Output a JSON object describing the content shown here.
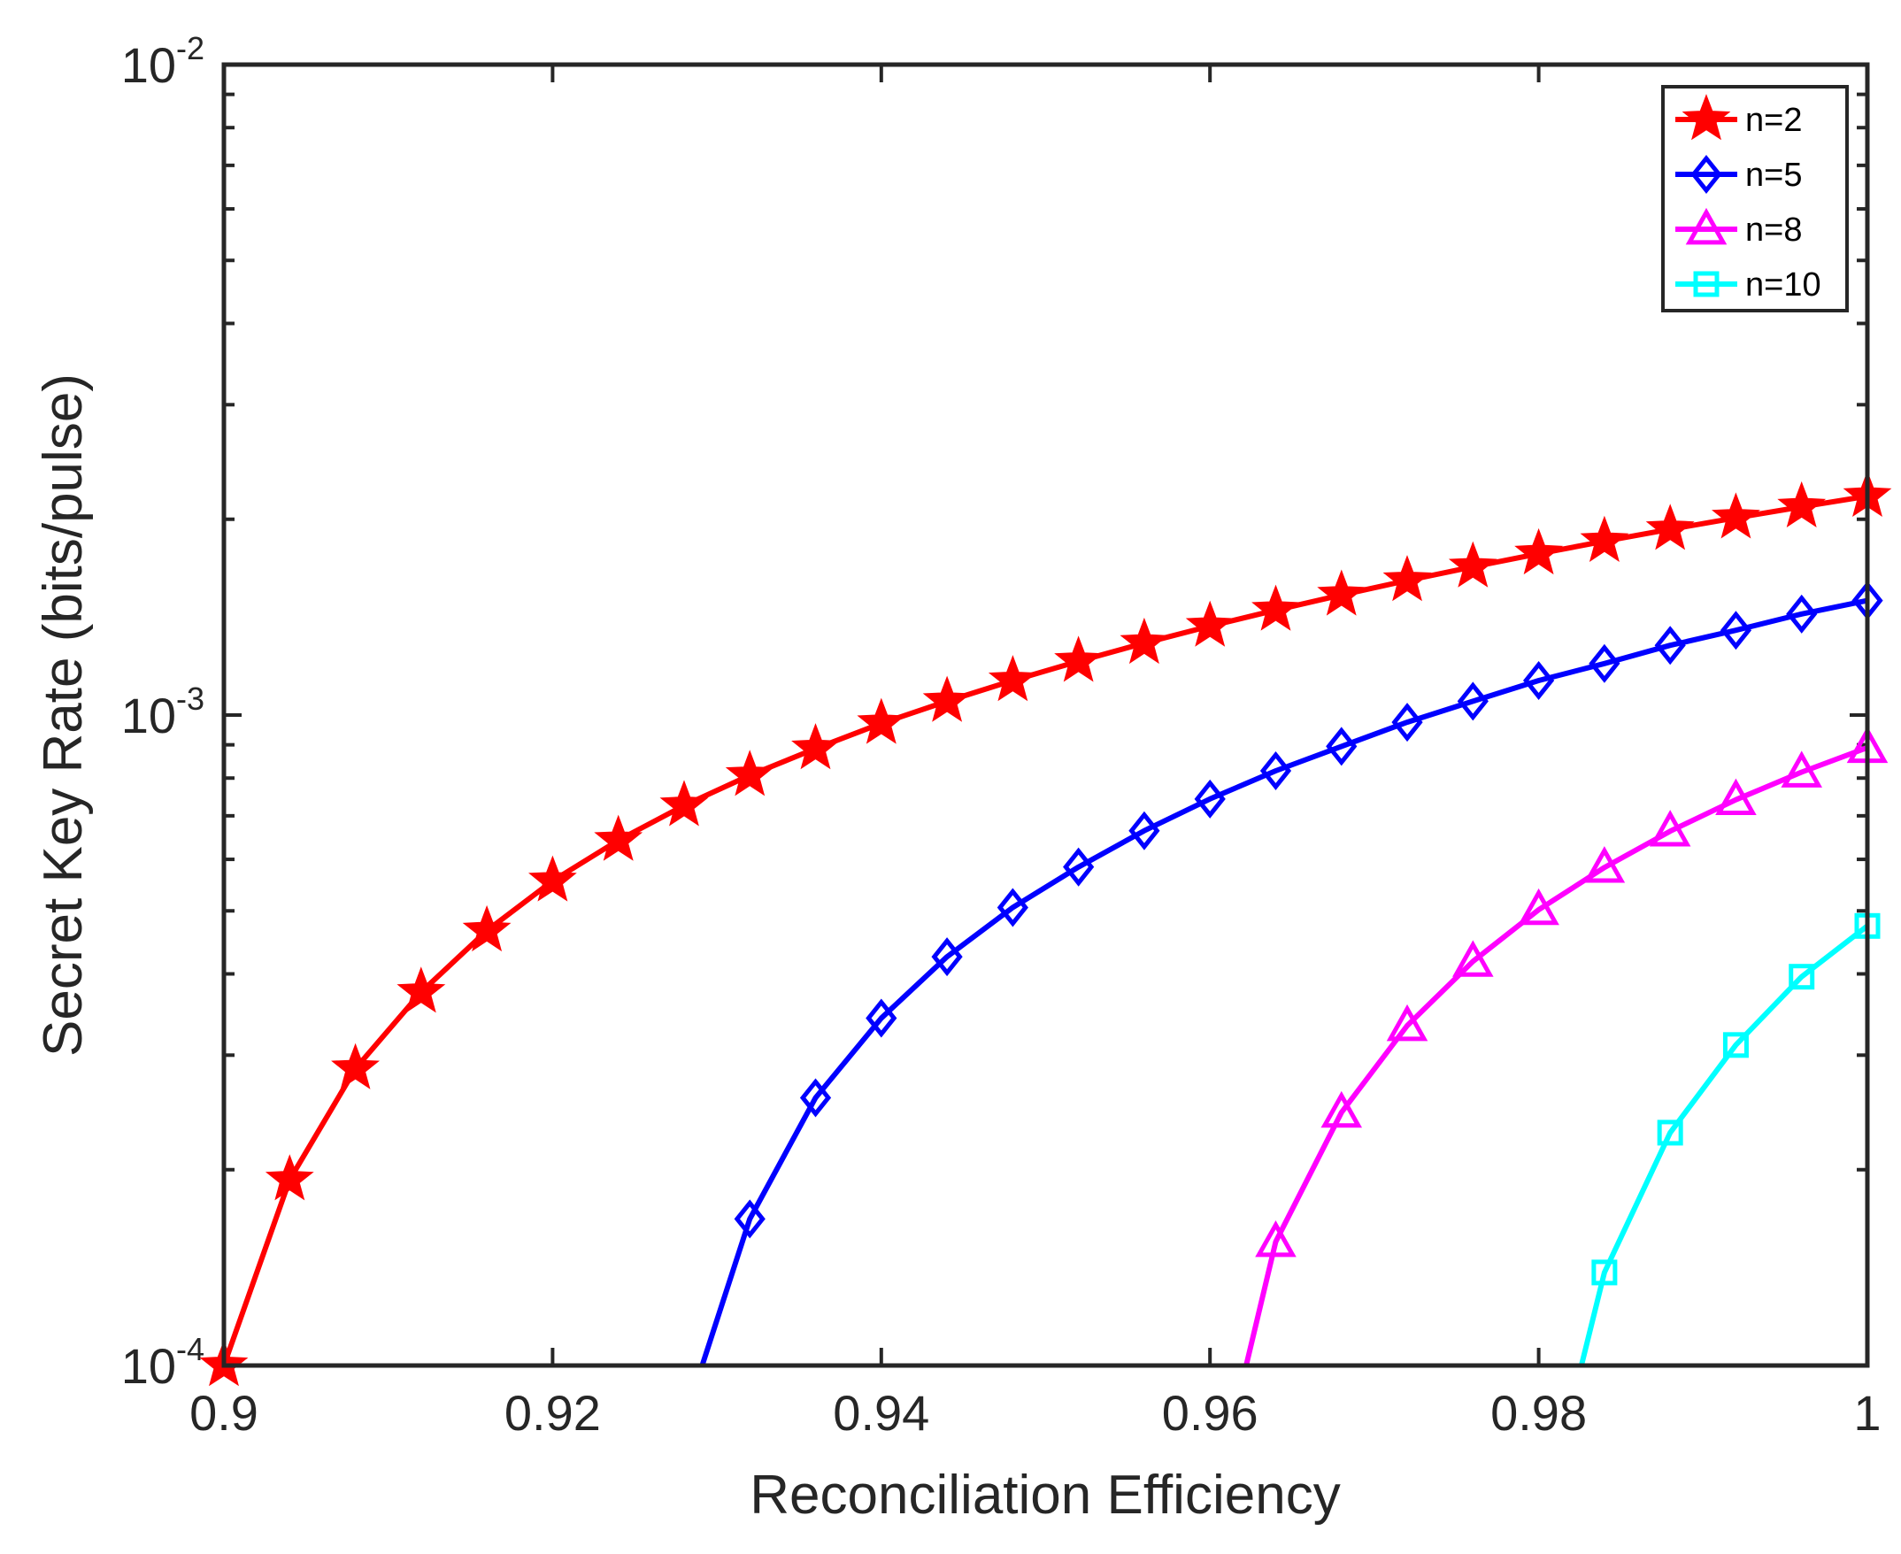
{
  "chart_data": {
    "type": "line",
    "title": "",
    "xlabel": "Reconciliation Efficiency",
    "ylabel": "Secret Key Rate (bits/pulse)",
    "xlim": [
      0.9,
      1.0
    ],
    "ylim": [
      0.0001,
      0.01
    ],
    "yscale": "log",
    "x_ticks": [
      0.9,
      0.92,
      0.94,
      0.96,
      0.98,
      1.0
    ],
    "x_tick_labels": [
      "0.9",
      "0.92",
      "0.94",
      "0.96",
      "0.98",
      "1"
    ],
    "y_ticks": [
      {
        "value": 0.0001,
        "base": "10",
        "exp": "-4"
      },
      {
        "value": 0.001,
        "base": "10",
        "exp": "-3"
      },
      {
        "value": 0.01,
        "base": "10",
        "exp": "-2"
      }
    ],
    "legend_position": "top-right",
    "series": [
      {
        "name": "n=2",
        "color": "#ff0000",
        "marker": "star",
        "x": [
          0.9,
          0.904,
          0.908,
          0.912,
          0.916,
          0.92,
          0.924,
          0.928,
          0.932,
          0.936,
          0.94,
          0.944,
          0.948,
          0.952,
          0.956,
          0.96,
          0.964,
          0.968,
          0.972,
          0.976,
          0.98,
          0.984,
          0.988,
          0.992,
          0.996,
          1.0
        ],
        "y": [
          0.0001,
          0.000193,
          0.000286,
          0.000375,
          0.000466,
          0.000556,
          0.000642,
          0.000726,
          0.000808,
          0.000888,
          0.000971,
          0.00105,
          0.00113,
          0.00121,
          0.00129,
          0.00137,
          0.00145,
          0.00153,
          0.00161,
          0.00169,
          0.00177,
          0.00185,
          0.00193,
          0.00201,
          0.00209,
          0.00217
        ]
      },
      {
        "name": "n=5",
        "color": "#0000ff",
        "marker": "diamond",
        "line_start": {
          "x": 0.9291,
          "y": 0.0001
        },
        "x": [
          0.932,
          0.936,
          0.94,
          0.944,
          0.948,
          0.952,
          0.956,
          0.96,
          0.964,
          0.968,
          0.972,
          0.976,
          0.98,
          0.984,
          0.988,
          0.992,
          0.996,
          1.0
        ],
        "y": [
          0.000168,
          0.000258,
          0.000342,
          0.000425,
          0.000506,
          0.000584,
          0.000664,
          0.000743,
          0.000821,
          0.000895,
          0.000975,
          0.00105,
          0.00113,
          0.0012,
          0.00128,
          0.00135,
          0.00143,
          0.0015
        ]
      },
      {
        "name": "n=8",
        "color": "#ff00ff",
        "marker": "triangle",
        "line_start": {
          "x": 0.9622,
          "y": 0.0001
        },
        "x": [
          0.964,
          0.968,
          0.972,
          0.976,
          0.98,
          0.984,
          0.988,
          0.992,
          0.996,
          1.0
        ],
        "y": [
          0.000155,
          0.000245,
          0.000333,
          0.000418,
          0.000502,
          0.000583,
          0.000663,
          0.000741,
          0.000817,
          0.000891
        ]
      },
      {
        "name": "n=10",
        "color": "#00ffff",
        "marker": "square",
        "line_start": {
          "x": 0.9826,
          "y": 0.0001
        },
        "x": [
          0.984,
          0.988,
          0.992,
          0.996,
          1.0
        ],
        "y": [
          0.000139,
          0.000228,
          0.000311,
          0.000396,
          0.000474
        ]
      }
    ]
  }
}
